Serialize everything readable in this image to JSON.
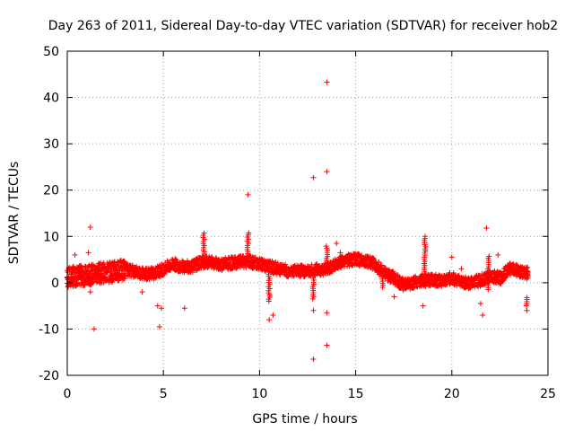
{
  "chart_data": {
    "type": "scatter",
    "title": "Day 263 of 2011, Sidereal Day-to-day VTEC variation (SDTVAR) for receiver hob2",
    "xlabel": "GPS time / hours",
    "ylabel": "SDTVAR / TECUs",
    "xlim": [
      0,
      25
    ],
    "ylim": [
      -20,
      50
    ],
    "xticks": [
      0,
      5,
      10,
      15,
      20,
      25
    ],
    "yticks": [
      -20,
      -10,
      0,
      10,
      20,
      30,
      40,
      50
    ],
    "grid": true,
    "marker": "+",
    "series_color": "#ff0000",
    "band": [
      [
        0.0,
        1.0
      ],
      [
        0.5,
        1.5
      ],
      [
        1.0,
        1.5
      ],
      [
        1.5,
        2.0
      ],
      [
        2.0,
        2.2
      ],
      [
        2.5,
        2.5
      ],
      [
        3.0,
        2.8
      ],
      [
        3.5,
        2.5
      ],
      [
        4.0,
        2.0
      ],
      [
        4.5,
        2.0
      ],
      [
        5.0,
        3.0
      ],
      [
        5.5,
        4.0
      ],
      [
        6.0,
        3.5
      ],
      [
        6.5,
        3.5
      ],
      [
        7.0,
        4.5
      ],
      [
        7.5,
        4.5
      ],
      [
        8.0,
        4.0
      ],
      [
        8.5,
        4.2
      ],
      [
        9.0,
        4.5
      ],
      [
        9.5,
        4.5
      ],
      [
        10.0,
        4.0
      ],
      [
        10.5,
        3.5
      ],
      [
        11.0,
        3.0
      ],
      [
        11.5,
        2.5
      ],
      [
        12.0,
        2.5
      ],
      [
        12.5,
        2.5
      ],
      [
        13.0,
        2.8
      ],
      [
        13.5,
        3.0
      ],
      [
        14.0,
        4.0
      ],
      [
        14.5,
        4.8
      ],
      [
        15.0,
        5.0
      ],
      [
        15.5,
        4.8
      ],
      [
        16.0,
        4.0
      ],
      [
        16.5,
        2.0
      ],
      [
        17.0,
        1.0
      ],
      [
        17.5,
        -0.5
      ],
      [
        18.0,
        0.0
      ],
      [
        18.5,
        0.5
      ],
      [
        19.0,
        0.5
      ],
      [
        19.5,
        0.5
      ],
      [
        20.0,
        1.0
      ],
      [
        20.5,
        0.0
      ],
      [
        21.0,
        0.0
      ],
      [
        21.5,
        0.5
      ],
      [
        22.0,
        1.5
      ],
      [
        22.5,
        1.0
      ],
      [
        23.0,
        3.0
      ],
      [
        23.5,
        2.5
      ],
      [
        24.0,
        2.0
      ]
    ],
    "spikes": [
      [
        7.1,
        3.5,
        11.0
      ],
      [
        9.4,
        4.0,
        11.0
      ],
      [
        10.5,
        -4.0,
        3.0
      ],
      [
        12.8,
        -3.5,
        2.5
      ],
      [
        13.5,
        2.5,
        8.0
      ],
      [
        16.4,
        -1.0,
        3.0
      ],
      [
        18.6,
        1.0,
        10.0
      ],
      [
        21.9,
        -1.5,
        6.0
      ],
      [
        23.9,
        -5.0,
        -3.0
      ]
    ],
    "points": [
      [
        0.4,
        6.0
      ],
      [
        1.1,
        6.5
      ],
      [
        1.2,
        12.0
      ],
      [
        1.4,
        -10.0
      ],
      [
        1.2,
        -2.0
      ],
      [
        3.9,
        -2.0
      ],
      [
        4.7,
        -5.0
      ],
      [
        4.8,
        -9.5
      ],
      [
        4.9,
        -5.5
      ],
      [
        6.1,
        -5.5
      ],
      [
        9.4,
        19.0
      ],
      [
        10.5,
        -8.0
      ],
      [
        10.7,
        -7.0
      ],
      [
        12.8,
        22.7
      ],
      [
        12.8,
        -6.0
      ],
      [
        12.8,
        -16.5
      ],
      [
        13.5,
        43.3
      ],
      [
        13.5,
        24.0
      ],
      [
        13.5,
        -6.5
      ],
      [
        13.5,
        -13.5
      ],
      [
        14.0,
        8.5
      ],
      [
        14.2,
        6.5
      ],
      [
        17.0,
        -3.0
      ],
      [
        18.5,
        -5.0
      ],
      [
        20.0,
        5.5
      ],
      [
        20.5,
        3.0
      ],
      [
        21.5,
        -4.5
      ],
      [
        21.6,
        -7.0
      ],
      [
        21.8,
        11.8
      ],
      [
        22.4,
        6.0
      ],
      [
        23.9,
        -6.0
      ]
    ]
  }
}
